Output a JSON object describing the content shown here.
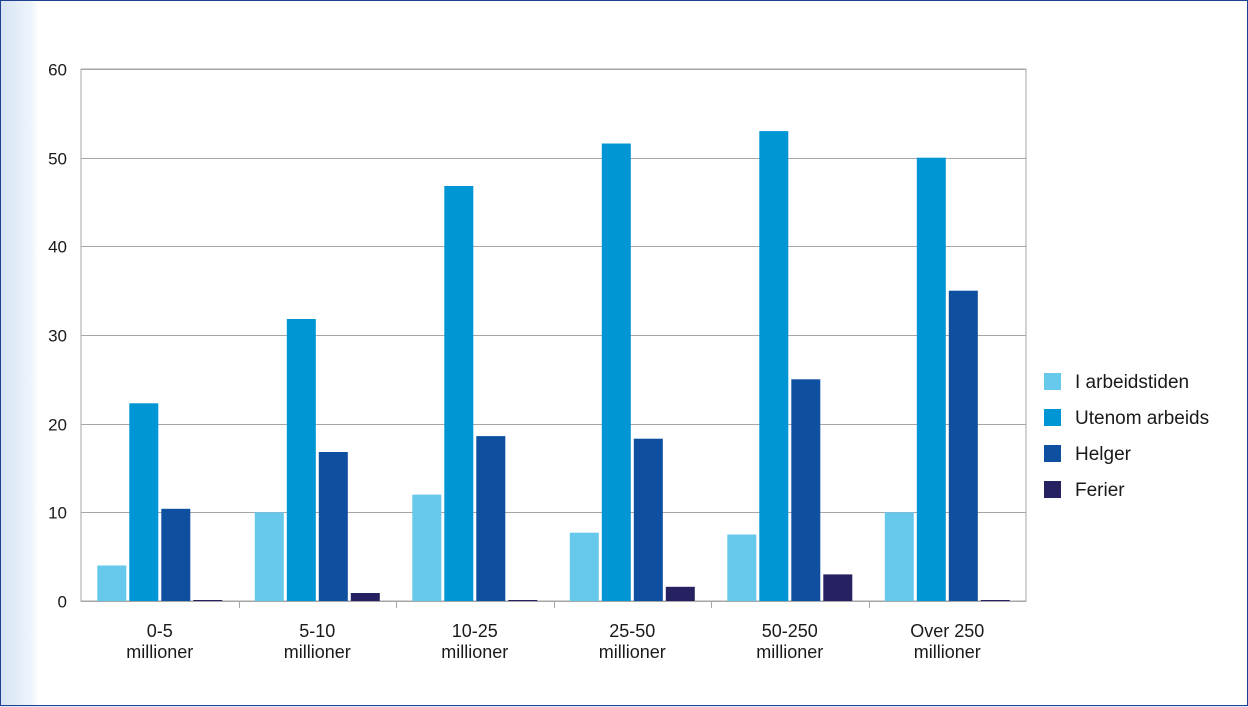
{
  "chart_data": {
    "type": "bar",
    "title": "",
    "xlabel": "",
    "ylabel": "",
    "ylim": [
      0,
      60
    ],
    "yticks": [
      0,
      10,
      20,
      30,
      40,
      50,
      60
    ],
    "grid": true,
    "legend_position": "right",
    "categories": [
      [
        "0-5",
        "millioner"
      ],
      [
        "5-10",
        "millioner"
      ],
      [
        "10-25",
        "millioner"
      ],
      [
        "25-50",
        "millioner"
      ],
      [
        "50-250",
        "millioner"
      ],
      [
        "Over 250",
        "millioner"
      ]
    ],
    "series": [
      {
        "name": "I arbeidstiden",
        "color": "#66c9eb",
        "values": [
          4,
          10,
          12,
          7.7,
          7.5,
          10
        ]
      },
      {
        "name": "Utenom arbeids",
        "color": "#0096d6",
        "values": [
          22.3,
          31.8,
          46.8,
          51.6,
          53,
          50
        ]
      },
      {
        "name": "Helger",
        "color": "#0e4fa0",
        "values": [
          10.4,
          16.8,
          18.6,
          18.3,
          25,
          35
        ]
      },
      {
        "name": "Ferier",
        "color": "#262261",
        "values": [
          0,
          0.9,
          0,
          1.6,
          3,
          0
        ]
      }
    ]
  }
}
